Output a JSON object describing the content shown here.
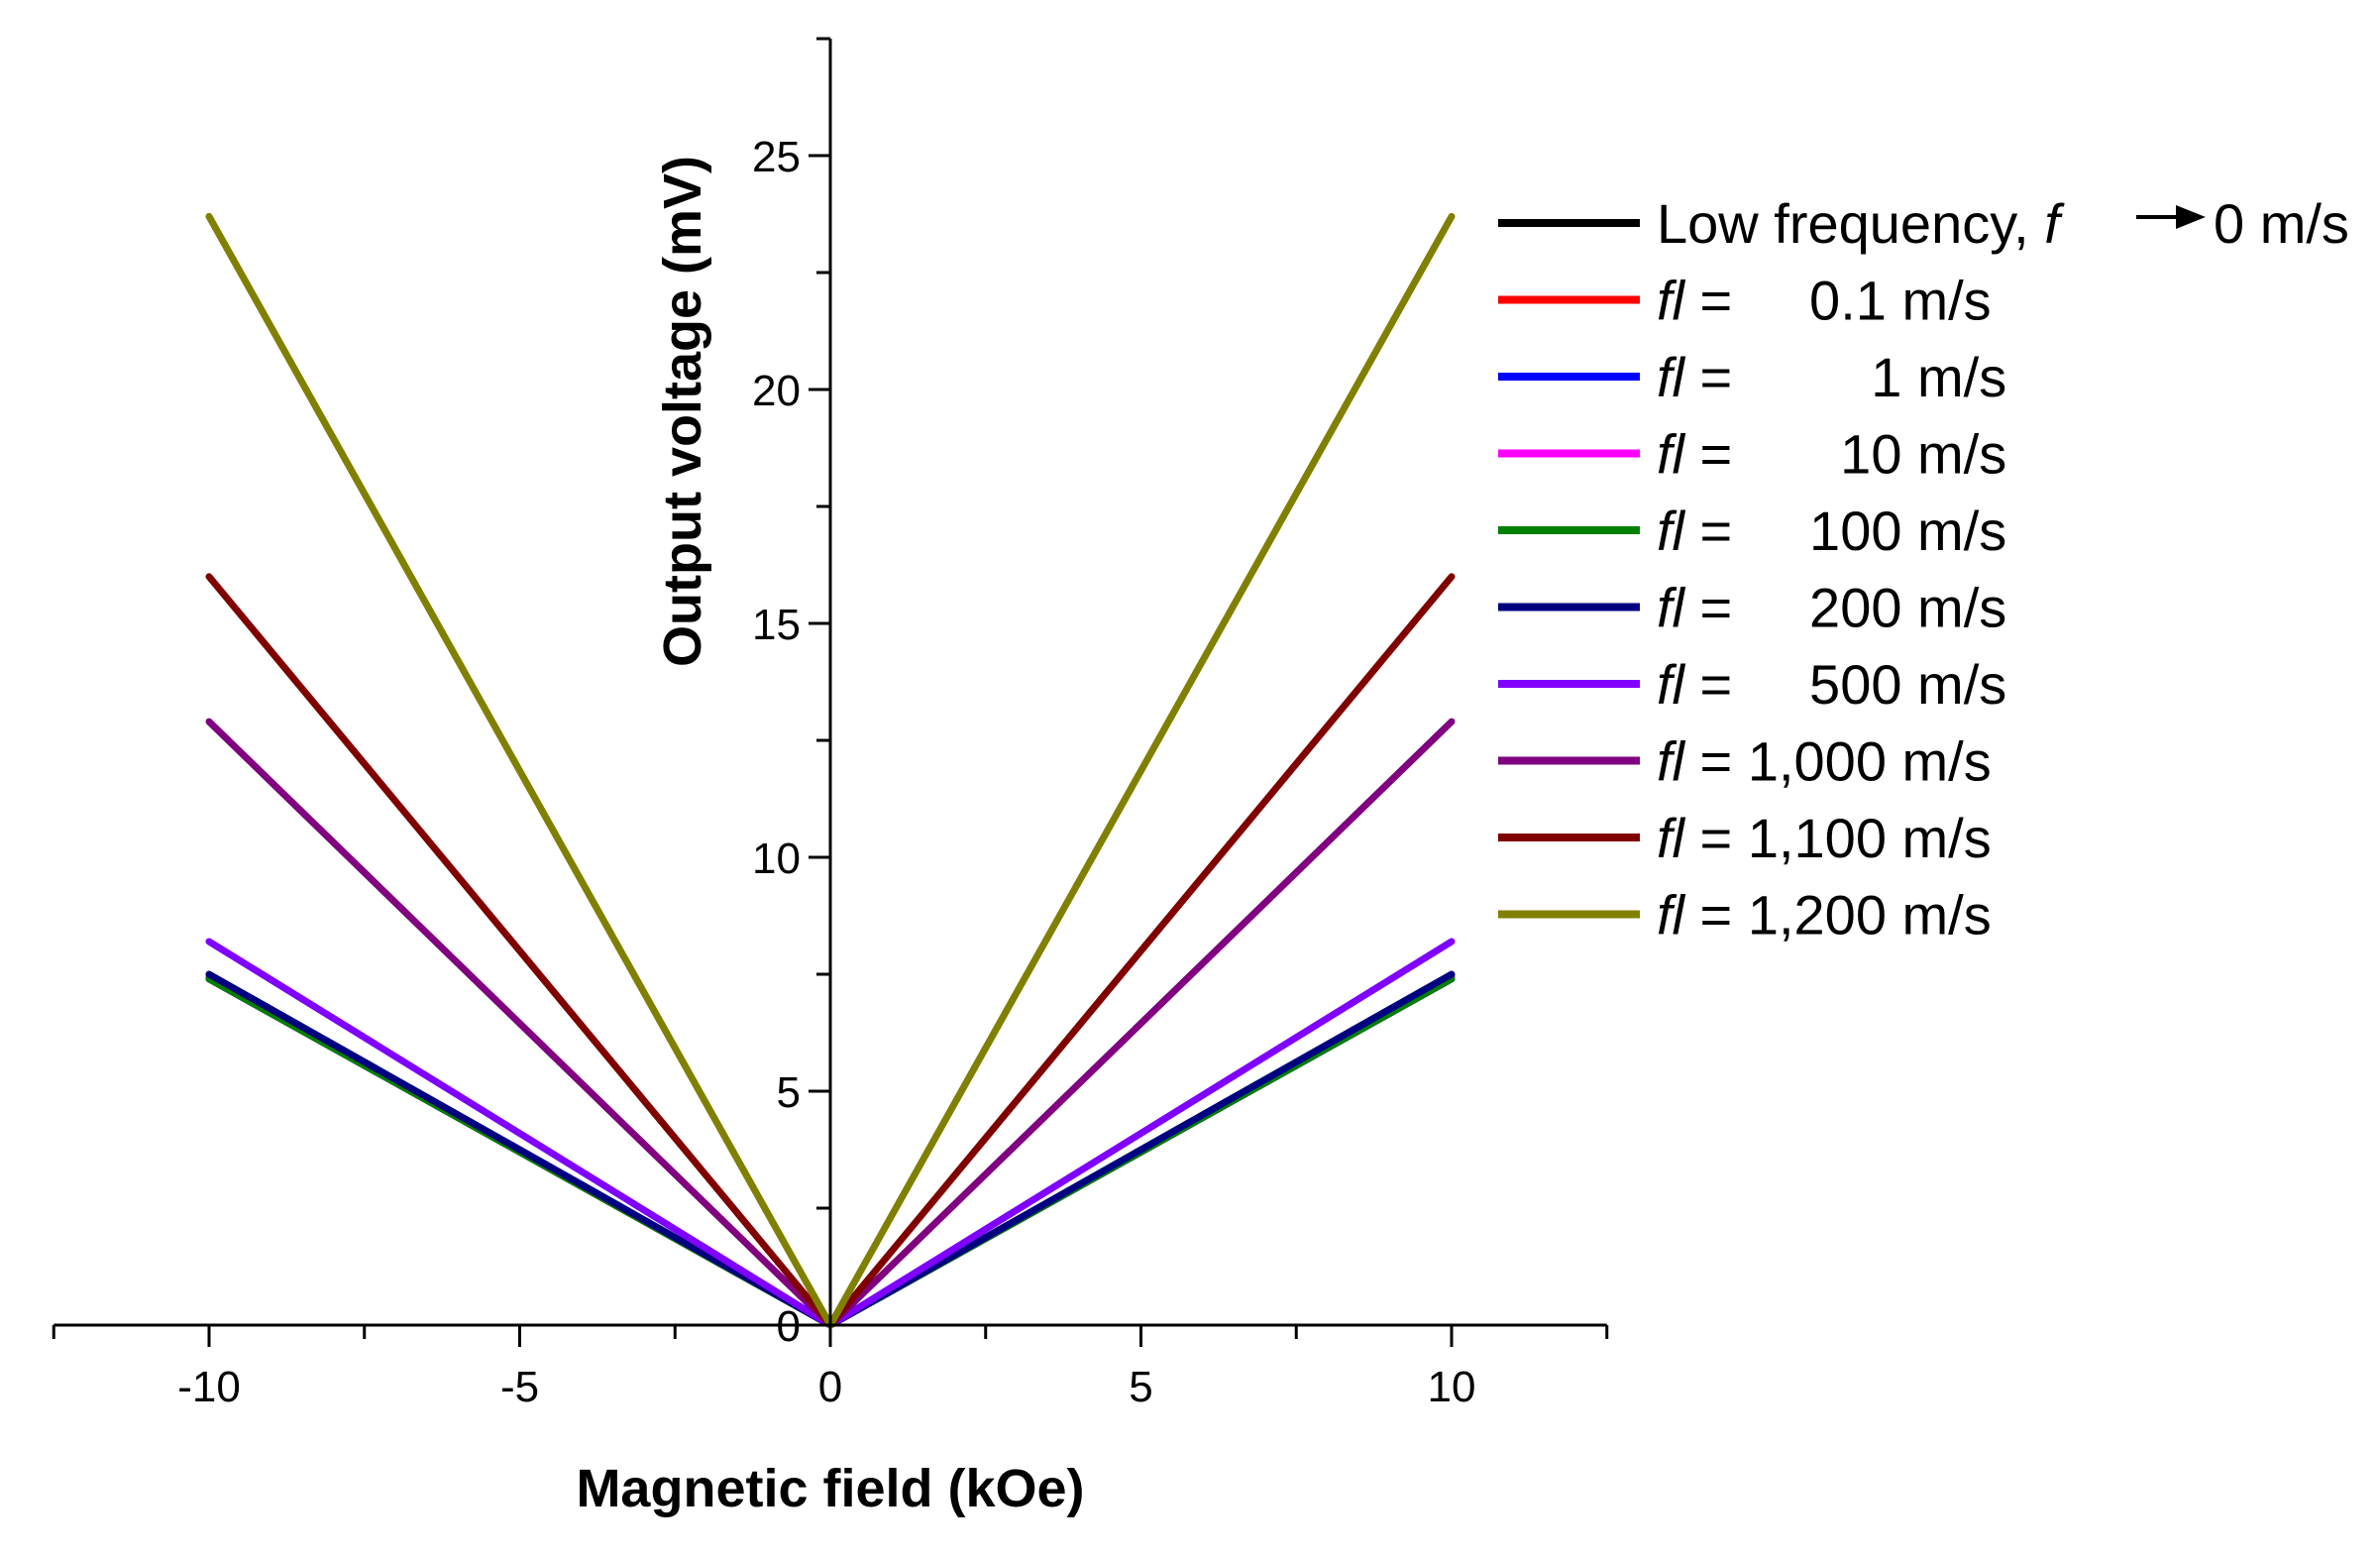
{
  "chart_data": {
    "type": "line",
    "title": "",
    "xlabel": "Magnetic field (kOe)",
    "ylabel": "Output voltage (mV)",
    "xlim": [
      -12.5,
      12.5
    ],
    "ylim": [
      0,
      27.5
    ],
    "xticks": [
      -10,
      -5,
      0,
      5,
      10
    ],
    "yticks": [
      0,
      5,
      10,
      15,
      20,
      25
    ],
    "xtick_labels": [
      "-10",
      "-5",
      "0",
      "5",
      "10"
    ],
    "ytick_labels": [
      "0",
      "5",
      "10",
      "15",
      "20",
      "25"
    ],
    "grid": false,
    "legend_position": "right",
    "series": [
      {
        "name": "Low frequency",
        "legend_prefix": "Low frequency, ",
        "legend_italic": "f",
        "legend_value": "0 m/s",
        "arrow": true,
        "color": "#000000",
        "x": [
          -10,
          0,
          10
        ],
        "y": [
          7.4,
          0,
          7.4
        ]
      },
      {
        "name": "fl = 0.1 m/s",
        "legend_italic": "fl",
        "legend_value": " =     0.1 m/s",
        "color": "#ff0000",
        "x": [
          -10,
          0,
          10
        ],
        "y": [
          7.4,
          0,
          7.4
        ]
      },
      {
        "name": "fl = 1 m/s",
        "legend_italic": "fl",
        "legend_value": " =         1 m/s",
        "color": "#0000ff",
        "x": [
          -10,
          0,
          10
        ],
        "y": [
          7.4,
          0,
          7.4
        ]
      },
      {
        "name": "fl = 10 m/s",
        "legend_italic": "fl",
        "legend_value": " =       10 m/s",
        "color": "#ff00ff",
        "x": [
          -10,
          0,
          10
        ],
        "y": [
          7.45,
          0,
          7.45
        ]
      },
      {
        "name": "fl = 100 m/s",
        "legend_italic": "fl",
        "legend_value": " =     100 m/s",
        "color": "#008000",
        "x": [
          -10,
          0,
          10
        ],
        "y": [
          7.4,
          0,
          7.4
        ]
      },
      {
        "name": "fl = 200 m/s",
        "legend_italic": "fl",
        "legend_value": " =     200 m/s",
        "color": "#000080",
        "x": [
          -10,
          0,
          10
        ],
        "y": [
          7.5,
          0,
          7.5
        ]
      },
      {
        "name": "fl = 500 m/s",
        "legend_italic": "fl",
        "legend_value": " =     500 m/s",
        "color": "#8000ff",
        "x": [
          -10,
          0,
          10
        ],
        "y": [
          8.2,
          0,
          8.2
        ]
      },
      {
        "name": "fl = 1,000 m/s",
        "legend_italic": "fl",
        "legend_value": " = 1,000 m/s",
        "color": "#800080",
        "x": [
          -10,
          0,
          10
        ],
        "y": [
          12.9,
          0,
          12.9
        ]
      },
      {
        "name": "fl = 1,100 m/s",
        "legend_italic": "fl",
        "legend_value": " = 1,100 m/s",
        "color": "#800000",
        "x": [
          -10,
          0,
          10
        ],
        "y": [
          16.0,
          0,
          16.0
        ]
      },
      {
        "name": "fl = 1,200 m/s",
        "legend_italic": "fl",
        "legend_value": " = 1,200 m/s",
        "color": "#808000",
        "x": [
          -10,
          0,
          10
        ],
        "y": [
          23.7,
          0,
          23.7
        ]
      }
    ]
  }
}
